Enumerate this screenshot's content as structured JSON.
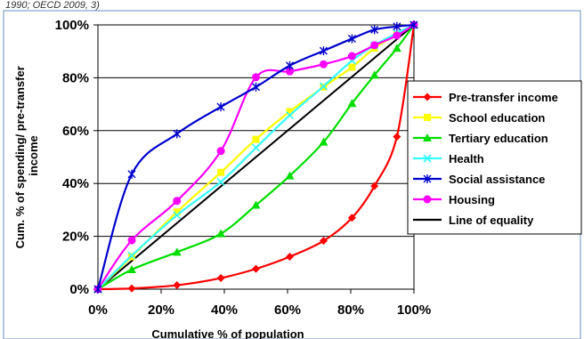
{
  "caption_fragment": "1990; OECD 2009, 3)",
  "chart_data": {
    "type": "line",
    "title": "",
    "xlabel": "Cumulative % of population",
    "ylabel": "Cum. % of spending/ pre-transfer income",
    "xlim": [
      0,
      100
    ],
    "ylim": [
      0,
      100
    ],
    "x_ticks": [
      "0%",
      "20%",
      "40%",
      "60%",
      "80%",
      "100%"
    ],
    "y_ticks": [
      "0%",
      "20%",
      "40%",
      "60%",
      "80%",
      "100%"
    ],
    "grid": "horizontal",
    "legend_position": "right",
    "series": [
      {
        "name": "Pre-transfer income",
        "color": "#ff0000",
        "marker": "diamond",
        "x": [
          0,
          10.7,
          25,
          38.9,
          50,
          60.7,
          71.4,
          80.4,
          87.5,
          94.6,
          100
        ],
        "y": [
          0,
          0.3,
          1.5,
          4.2,
          7.7,
          12.3,
          18.3,
          27,
          39,
          57.7,
          100
        ]
      },
      {
        "name": "School education",
        "color": "#ffff00",
        "marker": "square",
        "x": [
          0,
          10.7,
          25,
          38.9,
          50,
          60.7,
          71.4,
          80.4,
          87.5,
          94.6,
          100
        ],
        "y": [
          0,
          12.3,
          29.2,
          44.2,
          56.7,
          67.2,
          76.5,
          84,
          91.2,
          96.3,
          100
        ]
      },
      {
        "name": "Tertiary education",
        "color": "#00dd00",
        "marker": "triangle",
        "x": [
          0,
          10.7,
          25,
          38.9,
          50,
          60.7,
          71.4,
          80.4,
          87.5,
          94.6,
          100
        ],
        "y": [
          0,
          7.4,
          14,
          21,
          31.8,
          42.9,
          55.7,
          70.3,
          81,
          91.2,
          100
        ]
      },
      {
        "name": "Health",
        "color": "#33ffff",
        "marker": "x",
        "x": [
          0,
          10.7,
          25,
          38.9,
          50,
          60.7,
          71.4,
          80.4,
          87.5,
          94.6,
          100
        ],
        "y": [
          0,
          12.7,
          28,
          40.6,
          53.5,
          65.8,
          76.8,
          86.5,
          92.3,
          96.9,
          100
        ]
      },
      {
        "name": "Social assistance",
        "color": "#0000cc",
        "marker": "star",
        "x": [
          0,
          10.7,
          25,
          38.9,
          50,
          60.7,
          71.4,
          80.4,
          87.5,
          94.6,
          100
        ],
        "y": [
          0,
          43.5,
          58.8,
          69,
          76.5,
          84.6,
          90.2,
          94.8,
          98.2,
          99.4,
          100
        ]
      },
      {
        "name": "Housing",
        "color": "#ff00ff",
        "marker": "circle",
        "x": [
          0,
          10.7,
          25,
          38.9,
          50,
          60.7,
          71.4,
          80.4,
          87.5,
          94.6,
          100
        ],
        "y": [
          0,
          18.5,
          33.4,
          52.3,
          80.2,
          82.4,
          85.1,
          88.2,
          92.3,
          96,
          100
        ]
      },
      {
        "name": "Line of equality",
        "color": "#000000",
        "marker": "none",
        "x": [
          0,
          100
        ],
        "y": [
          0,
          100
        ]
      }
    ]
  }
}
